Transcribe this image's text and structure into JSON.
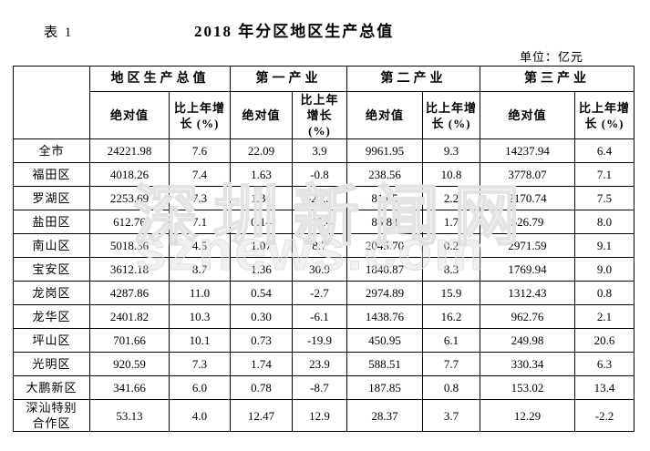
{
  "page": {
    "table_label": "表 1",
    "title": "2018 年分区地区生产总值",
    "unit_note": "单位：亿元"
  },
  "table": {
    "group_headers": [
      "地区生产总值",
      "第一产业",
      "第二产业",
      "第三产业"
    ],
    "sub_header_abs": "绝对值",
    "sub_header_growth": "比上年增长 (%)",
    "rows": [
      {
        "region": "全市",
        "values": [
          "24221.98",
          "7.6",
          "22.09",
          "3.9",
          "9961.95",
          "9.3",
          "14237.94",
          "6.4"
        ]
      },
      {
        "region": "福田区",
        "values": [
          "4018.26",
          "7.4",
          "1.63",
          "-0.8",
          "238.56",
          "10.8",
          "3778.07",
          "7.1"
        ]
      },
      {
        "region": "罗湖区",
        "values": [
          "2253.69",
          "7.3",
          "1.31",
          "-27.3",
          "81.65",
          "2.2",
          "2170.74",
          "7.5"
        ]
      },
      {
        "region": "盐田区",
        "values": [
          "612.76",
          "7.1",
          "0.14",
          "-19.4",
          "85.83",
          "1.7",
          "526.79",
          "8.0"
        ]
      },
      {
        "region": "南山区",
        "values": [
          "5018.36",
          "4.5",
          "1.07",
          "8.7",
          "2045.70",
          "0.2",
          "2971.59",
          "9.1"
        ]
      },
      {
        "region": "宝安区",
        "values": [
          "3612.18",
          "8.7",
          "1.36",
          "30.9",
          "1840.87",
          "8.3",
          "1769.94",
          "9.0"
        ]
      },
      {
        "region": "龙岗区",
        "values": [
          "4287.86",
          "11.0",
          "0.54",
          "-2.7",
          "2974.89",
          "15.9",
          "1312.43",
          "0.8"
        ]
      },
      {
        "region": "龙华区",
        "values": [
          "2401.82",
          "10.3",
          "0.30",
          "-6.1",
          "1438.76",
          "16.2",
          "962.76",
          "2.1"
        ]
      },
      {
        "region": "坪山区",
        "values": [
          "701.66",
          "10.1",
          "0.73",
          "-19.9",
          "450.95",
          "6.1",
          "249.98",
          "20.6"
        ]
      },
      {
        "region": "光明区",
        "values": [
          "920.59",
          "7.3",
          "1.74",
          "23.9",
          "588.51",
          "7.7",
          "330.34",
          "6.3"
        ]
      },
      {
        "region": "大鹏新区",
        "values": [
          "341.66",
          "6.0",
          "0.78",
          "-8.7",
          "187.85",
          "0.8",
          "153.02",
          "13.4"
        ]
      },
      {
        "region": "深汕特别合作区",
        "values": [
          "53.13",
          "4.0",
          "12.47",
          "12.9",
          "28.37",
          "3.7",
          "12.29",
          "-2.2"
        ]
      }
    ]
  },
  "watermark": {
    "line1": "深圳新闻网",
    "line2": "sznews.com"
  },
  "colors": {
    "background": "#ffffff",
    "text": "#000000",
    "border": "#000000",
    "watermark": "#e3e3e3"
  }
}
